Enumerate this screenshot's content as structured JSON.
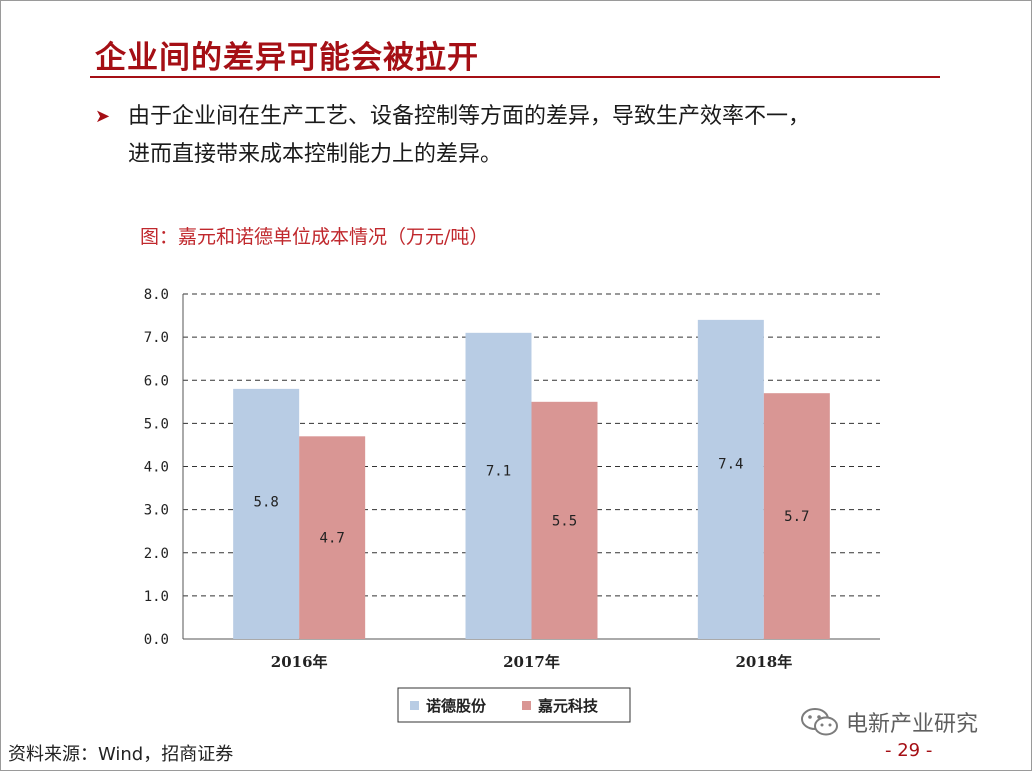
{
  "slide": {
    "title": "企业间的差异可能会被拉开",
    "bullet_line1": "由于企业间在生产工艺、设备控制等方面的差异，导致生产效率不一，",
    "bullet_line2": "进而直接带来成本控制能力上的差异。",
    "chart_caption": "图：嘉元和诺德单位成本情况（万元/吨）",
    "source": "资料来源：Wind，招商证券",
    "page_number": "- 29 -",
    "watermark_text": "电新产业研究"
  },
  "chart_data": {
    "type": "bar",
    "title": "嘉元和诺德单位成本情况（万元/吨）",
    "categories": [
      "2016年",
      "2017年",
      "2018年"
    ],
    "series": [
      {
        "name": "诺德股份",
        "values": [
          5.8,
          7.1,
          7.4
        ],
        "labels": [
          "5.8",
          "7.1",
          "7.4"
        ],
        "color": "#b8cce4"
      },
      {
        "name": "嘉元科技",
        "values": [
          4.7,
          5.5,
          5.7
        ],
        "labels": [
          "4.7",
          "5.5",
          "5.7"
        ],
        "color": "#d99694"
      }
    ],
    "ylim": [
      0,
      8
    ],
    "yticks": [
      "0.0",
      "1.0",
      "2.0",
      "3.0",
      "4.0",
      "5.0",
      "6.0",
      "7.0",
      "8.0"
    ],
    "grid": true,
    "legend": "bottom"
  },
  "colors": {
    "accent": "#a50f15",
    "series1": "#b8cce4",
    "series2": "#d99694"
  }
}
